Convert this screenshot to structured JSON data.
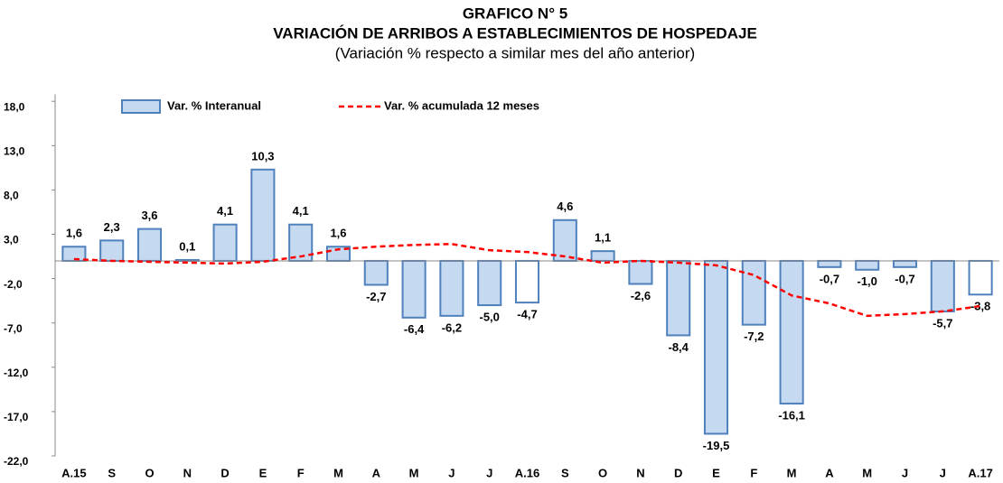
{
  "chart_data": {
    "type": "bar",
    "title": "GRAFICO N° 5",
    "subtitle": "VARIACIÓN DE ARRIBOS A ESTABLECIMIENTOS DE HOSPEDAJE",
    "note": "(Variación % respecto a similar mes del año anterior)",
    "categories": [
      "A.15",
      "S",
      "O",
      "N",
      "D",
      "E",
      "F",
      "M",
      "A",
      "M",
      "J",
      "J",
      "A.16",
      "S",
      "O",
      "N",
      "D",
      "E",
      "F",
      "M",
      "A",
      "M",
      "J",
      "J",
      "A.17"
    ],
    "series": [
      {
        "name": "Var. % Interanual",
        "type": "bar",
        "color": "#c5d9f1",
        "edge_color": "#4f81bd",
        "colors": [
          "#c5d9f1",
          "#c5d9f1",
          "#c5d9f1",
          "#c5d9f1",
          "#c5d9f1",
          "#c5d9f1",
          "#c5d9f1",
          "#c5d9f1",
          "#c5d9f1",
          "#c5d9f1",
          "#c5d9f1",
          "#c5d9f1",
          "#ffffff",
          "#c5d9f1",
          "#c5d9f1",
          "#c5d9f1",
          "#c5d9f1",
          "#c5d9f1",
          "#c5d9f1",
          "#c5d9f1",
          "#c5d9f1",
          "#c5d9f1",
          "#c5d9f1",
          "#c5d9f1",
          "#ffffff"
        ],
        "values": [
          1.6,
          2.3,
          3.6,
          0.1,
          4.1,
          10.3,
          4.1,
          1.6,
          -2.7,
          -6.4,
          -6.2,
          -5.0,
          -4.7,
          4.6,
          1.1,
          -2.6,
          -8.4,
          -19.5,
          -7.2,
          -16.1,
          -0.7,
          -1.0,
          -0.7,
          -5.7,
          -3.8
        ],
        "value_labels": [
          "1,6",
          "2,3",
          "3,6",
          "0,1",
          "4,1",
          "10,3",
          "4,1",
          "1,6",
          "-2,7",
          "-6,4",
          "-6,2",
          "-5,0",
          "-4,7",
          "4,6",
          "1,1",
          "-2,6",
          "-8,4",
          "-19,5",
          "-7,2",
          "-16,1",
          "-0,7",
          "-1,0",
          "-0,7",
          "-5,7",
          "-3,8"
        ]
      },
      {
        "name": "Var. % acumulada 12 meses",
        "type": "line",
        "color": "#ff0000",
        "dashed": true,
        "values": [
          0.2,
          0.0,
          -0.1,
          -0.2,
          -0.3,
          -0.1,
          0.5,
          1.3,
          1.6,
          1.8,
          1.9,
          1.2,
          1.0,
          0.5,
          -0.2,
          0.0,
          -0.2,
          -0.5,
          -1.6,
          -3.9,
          -4.8,
          -6.2,
          -6.0,
          -5.7,
          -5.1
        ]
      }
    ],
    "ylim": [
      -22,
      18.8
    ],
    "yticks": [
      {
        "value": 18,
        "label": "18,0"
      },
      {
        "value": 13,
        "label": "13,0"
      },
      {
        "value": 8,
        "label": "8,0"
      },
      {
        "value": 3,
        "label": "3,0"
      },
      {
        "value": -2,
        "label": "-2,0"
      },
      {
        "value": -7,
        "label": "-7,0"
      },
      {
        "value": -12,
        "label": "-12,0"
      },
      {
        "value": -17,
        "label": "-17,0"
      },
      {
        "value": -22,
        "label": "-22,0"
      }
    ],
    "grid": false
  }
}
